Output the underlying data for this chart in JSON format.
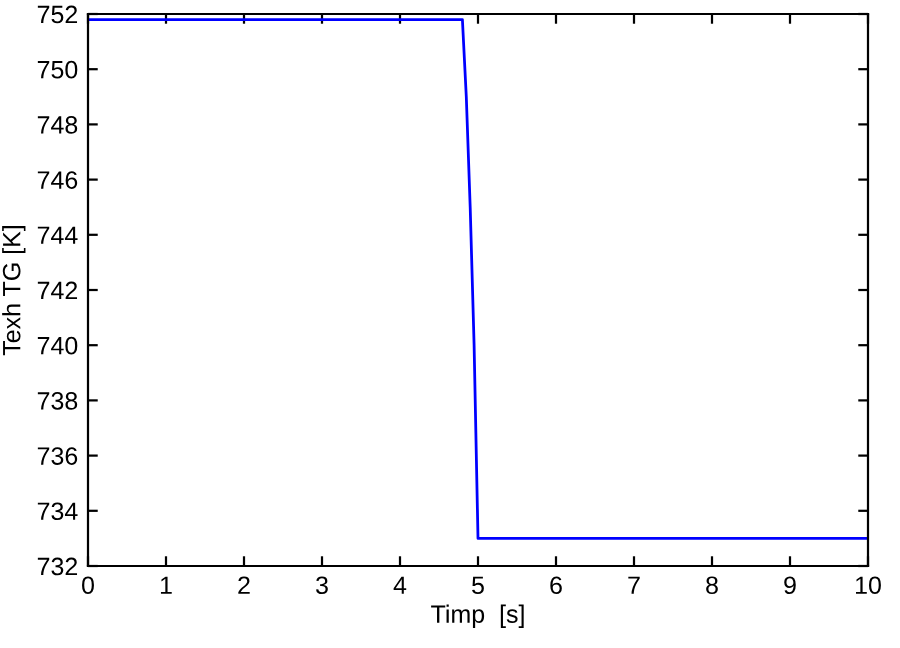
{
  "chart_data": {
    "type": "line",
    "xlabel": "Timp  [s]",
    "ylabel": "Texh TG [K]",
    "series": [
      {
        "color": "#0000ff",
        "x": [
          0,
          4.8,
          4.85,
          4.9,
          4.95,
          5.0,
          10
        ],
        "values": [
          751.8,
          751.8,
          749,
          745,
          740,
          733,
          733
        ]
      }
    ],
    "xlim": [
      0,
      10
    ],
    "ylim": [
      732,
      752
    ],
    "xticks": [
      0,
      1,
      2,
      3,
      4,
      5,
      6,
      7,
      8,
      9,
      10
    ],
    "yticks": [
      732,
      734,
      736,
      738,
      740,
      742,
      744,
      746,
      748,
      750,
      752
    ],
    "grid": false,
    "legend": false,
    "marker": "none",
    "line_style": "solid"
  }
}
